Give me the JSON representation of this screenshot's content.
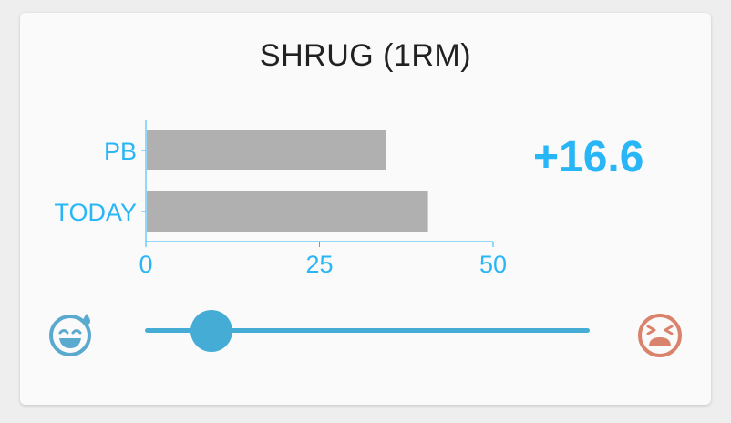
{
  "exercise": {
    "title": "SHRUG (1RM)"
  },
  "delta": "+16.6",
  "chart_data": {
    "type": "bar",
    "orientation": "horizontal",
    "categories": [
      "PB",
      "TODAY"
    ],
    "values": [
      34.5,
      40.5
    ],
    "xlim": [
      0,
      50
    ],
    "xticks": [
      "0",
      "25",
      "50"
    ],
    "colors": {
      "bar": "#b0b0b0",
      "axis": "#29b6f6"
    }
  },
  "difficulty": {
    "value_fraction": 0.15
  },
  "icons": {
    "left": "smiling-sweat-face-icon",
    "right": "tired-face-icon"
  },
  "colors": {
    "accent": "#29b6f6",
    "slider": "#45acd6",
    "hard": "#d9826c",
    "easy": "#5aa9cf"
  }
}
